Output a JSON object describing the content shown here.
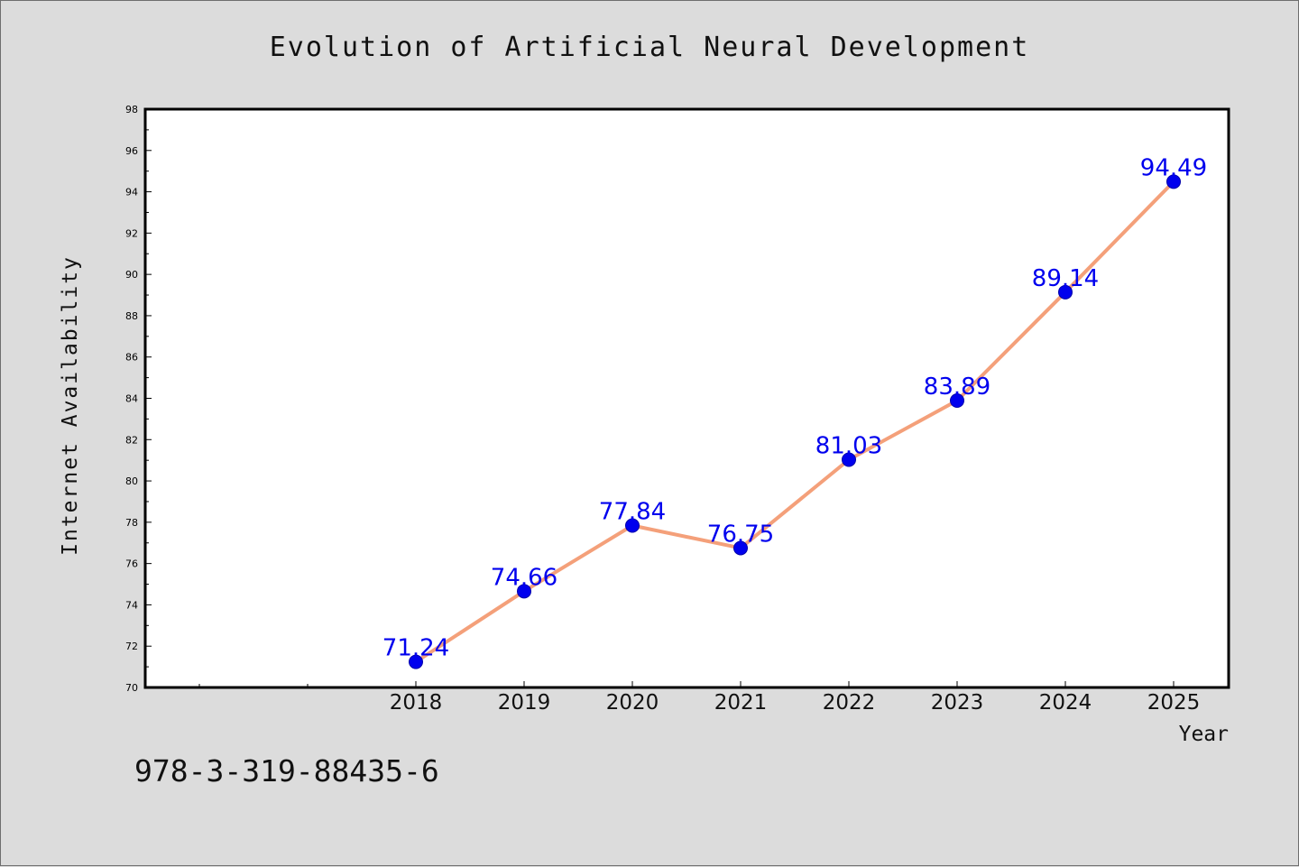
{
  "chart_data": {
    "type": "line",
    "title": "Evolution of Artificial Neural Development",
    "xlabel": "Year",
    "ylabel": "Internet Availability",
    "categories": [
      "2018",
      "2019",
      "2020",
      "2021",
      "2022",
      "2023",
      "2024",
      "2025"
    ],
    "series": [
      {
        "values": [
          71.24,
          74.66,
          77.84,
          76.75,
          81.03,
          83.89,
          89.14,
          94.49
        ],
        "data_labels": [
          "71.24",
          "74.66",
          "77.84",
          "76.75",
          "81.03",
          "83.89",
          "89.14",
          "94.49"
        ],
        "line_color": "#f4a07a",
        "marker_color": "#0000ee"
      }
    ],
    "x_tick_labels": [
      "2018",
      "2019",
      "2020",
      "2021",
      "2022",
      "2023",
      "2024",
      "2025"
    ],
    "y_tick_labels": [
      "70",
      "72",
      "74",
      "76",
      "78",
      "80",
      "82",
      "84",
      "86",
      "88",
      "90",
      "92",
      "94",
      "96",
      "98"
    ],
    "ylim": [
      70,
      98
    ],
    "grid": false,
    "data_label_color": "#0000ee"
  },
  "footer": {
    "code": "978-3-319-88435-6"
  }
}
